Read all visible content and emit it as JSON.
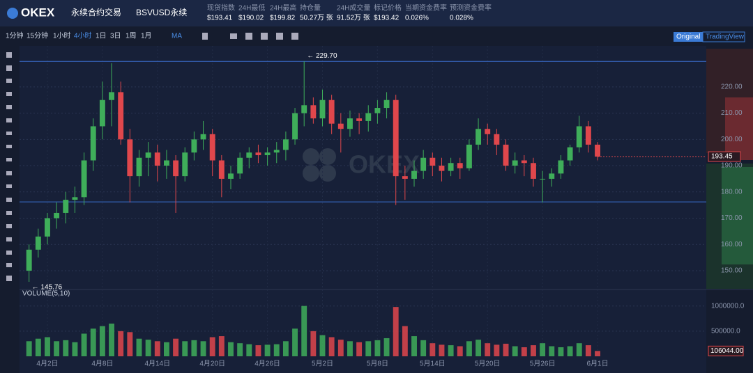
{
  "header": {
    "logo": "OKEX",
    "product": "永续合约交易",
    "contract": "BSVUSD永续",
    "stats": [
      {
        "label": "现货指数",
        "value": "$193.41"
      },
      {
        "label": "24H最低",
        "value": "$190.02"
      },
      {
        "label": "24H最高",
        "value": "$199.82"
      },
      {
        "label": "持仓量",
        "value": "50.27万 张"
      },
      {
        "label": "24H成交量",
        "value": "91.52万 张"
      },
      {
        "label": "标记价格",
        "value": "$193.42"
      },
      {
        "label": "当期资金费率",
        "value": "0.026%"
      },
      {
        "label": "预测资金费率",
        "value": "0.028%"
      }
    ]
  },
  "toolbar": {
    "intervals": [
      "1分钟",
      "15分钟",
      "1小时",
      "4小时",
      "1日",
      "3日",
      "1周",
      "1月"
    ],
    "active": "4小时",
    "indicator": "MA",
    "views": [
      "Original",
      "TradingView"
    ]
  },
  "chart_data": {
    "type": "candlestick",
    "up_color": "#3fae5a",
    "down_color": "#e0474c",
    "x": [
      -2,
      -1,
      0,
      1,
      2,
      3,
      4,
      5,
      6,
      7,
      8,
      9,
      10,
      11,
      12,
      13,
      14,
      15,
      16,
      17,
      18,
      19,
      20,
      21,
      22,
      23,
      24,
      25,
      26,
      27,
      28,
      29,
      30,
      31,
      32,
      33,
      34,
      35,
      36,
      37,
      38,
      39,
      40,
      41,
      42,
      43,
      44,
      45,
      46,
      47,
      48,
      49,
      50,
      51,
      52,
      53,
      54,
      55,
      56,
      57,
      58,
      59,
      60
    ],
    "open": [
      150,
      158,
      163,
      170,
      172,
      177,
      178,
      192,
      205,
      215,
      218,
      200,
      186,
      193,
      195,
      190,
      192,
      186,
      195,
      200,
      202,
      192,
      185,
      187,
      193,
      195,
      194,
      195,
      196,
      200,
      210,
      213,
      208,
      215,
      206,
      204,
      208,
      207,
      210,
      212,
      215,
      186,
      185,
      188,
      193,
      190,
      188,
      191,
      189,
      198,
      204,
      202,
      198,
      190,
      192,
      191,
      185,
      185,
      187,
      192,
      197,
      205,
      198
    ],
    "high": [
      160,
      166,
      172,
      176,
      180,
      182,
      195,
      208,
      222,
      229,
      222,
      204,
      196,
      199,
      198,
      196,
      194,
      197,
      203,
      207,
      204,
      194,
      190,
      195,
      197,
      198,
      197,
      199,
      203,
      212,
      229.7,
      216,
      219,
      217,
      210,
      211,
      210,
      213,
      215,
      218,
      217,
      190,
      192,
      196,
      195,
      193,
      193,
      193,
      200,
      208,
      206,
      204,
      200,
      195,
      194,
      193,
      188,
      189,
      194,
      198,
      209,
      207,
      199
    ],
    "low": [
      145.76,
      155,
      160,
      166,
      168,
      172,
      175,
      188,
      200,
      205,
      198,
      176,
      182,
      186,
      184,
      185,
      172,
      184,
      192,
      196,
      186,
      178,
      181,
      185,
      189,
      191,
      190,
      191,
      192,
      198,
      205,
      206,
      205,
      202,
      195,
      201,
      202,
      203,
      206,
      208,
      175,
      177,
      182,
      185,
      186,
      184,
      186,
      185,
      188,
      196,
      198,
      194,
      188,
      187,
      186,
      182,
      176,
      182,
      185,
      190,
      195,
      195,
      192
    ],
    "close": [
      158,
      163,
      170,
      172,
      177,
      178,
      192,
      205,
      215,
      218,
      200,
      186,
      193,
      195,
      190,
      192,
      186,
      195,
      200,
      202,
      192,
      185,
      187,
      193,
      195,
      194,
      195,
      196,
      200,
      210,
      213,
      208,
      215,
      206,
      204,
      208,
      207,
      210,
      212,
      215,
      186,
      185,
      188,
      193,
      190,
      188,
      191,
      189,
      198,
      204,
      202,
      198,
      190,
      192,
      191,
      185,
      185,
      187,
      192,
      197,
      205,
      198,
      193.45
    ],
    "volume": [
      300000,
      350000,
      380000,
      300000,
      320000,
      280000,
      450000,
      550000,
      600000,
      650000,
      500000,
      480000,
      350000,
      330000,
      300000,
      280000,
      350000,
      300000,
      320000,
      300000,
      380000,
      400000,
      280000,
      260000,
      240000,
      220000,
      230000,
      240000,
      300000,
      550000,
      1000000,
      500000,
      420000,
      380000,
      330000,
      300000,
      280000,
      300000,
      320000,
      360000,
      980000,
      600000,
      400000,
      320000,
      260000,
      230000,
      220000,
      200000,
      300000,
      330000,
      260000,
      230000,
      250000,
      200000,
      180000,
      220000,
      260000,
      200000,
      180000,
      200000,
      260000,
      220000,
      106044
    ],
    "xlim": [
      -3.04,
      71.86
    ],
    "xticks": [
      {
        "value": 0,
        "label": "4月2日"
      },
      {
        "value": 6,
        "label": "4月8日"
      },
      {
        "value": 12,
        "label": "4月14日"
      },
      {
        "value": 18,
        "label": "4月20日"
      },
      {
        "value": 24,
        "label": "4月26日"
      },
      {
        "value": 30,
        "label": "5月2日"
      },
      {
        "value": 36,
        "label": "5月8日"
      },
      {
        "value": 42,
        "label": "5月14日"
      },
      {
        "value": 48,
        "label": "5月20日"
      },
      {
        "value": 54,
        "label": "5月26日"
      },
      {
        "value": 60,
        "label": "6月1日"
      }
    ],
    "ylim": [
      143.1,
      235.6
    ],
    "yticks": [
      {
        "value": 150,
        "label": "150.00"
      },
      {
        "value": 160,
        "label": "160.00"
      },
      {
        "value": 170,
        "label": "170.00"
      },
      {
        "value": 180,
        "label": "180.00"
      },
      {
        "value": 190,
        "label": "190.00"
      },
      {
        "value": 200,
        "label": "200.00"
      },
      {
        "value": 210,
        "label": "210.00"
      },
      {
        "value": 220,
        "label": "220.00"
      }
    ],
    "hlines": [
      229.7,
      176.2
    ],
    "max_label": "← 229.70",
    "min_label": "← 145.76",
    "last_price_label": "193.45",
    "volume_title": "VOLUME(5,10)",
    "volume_ylim": [
      0,
      1300000
    ],
    "volume_ticks": [
      {
        "value": 500000,
        "label": "500000.0"
      },
      {
        "value": 1000000,
        "label": "1000000.0"
      }
    ],
    "last_volume_label": "106044.00",
    "grid": true
  }
}
